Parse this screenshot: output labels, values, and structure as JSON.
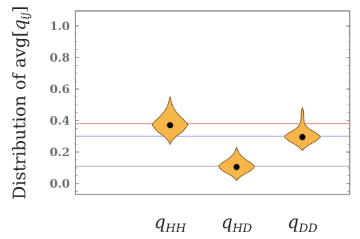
{
  "chart_data": {
    "type": "violin",
    "ylabel": "Distribution of avg[q_ij]",
    "ylabel_parts": {
      "prefix": "Distribution of avg",
      "var": "q",
      "sub": "ij"
    },
    "ylim": [
      -0.08,
      1.05
    ],
    "yticks": [
      "0.0",
      "0.2",
      "0.4",
      "0.6",
      "0.8",
      "1.0"
    ],
    "categories": [
      {
        "var": "q",
        "sub": "HH"
      },
      {
        "var": "q",
        "sub": "HD"
      },
      {
        "var": "q",
        "sub": "DD"
      }
    ],
    "series": [
      {
        "category": "q_HH",
        "median": 0.37,
        "range": [
          0.25,
          0.55
        ],
        "profile": [
          [
            0.25,
            0.0
          ],
          [
            0.27,
            0.1
          ],
          [
            0.3,
            0.35
          ],
          [
            0.33,
            0.7
          ],
          [
            0.36,
            0.92
          ],
          [
            0.375,
            1.0
          ],
          [
            0.39,
            0.9
          ],
          [
            0.42,
            0.62
          ],
          [
            0.45,
            0.38
          ],
          [
            0.48,
            0.2
          ],
          [
            0.51,
            0.1
          ],
          [
            0.53,
            0.05
          ],
          [
            0.55,
            0.0
          ]
        ]
      },
      {
        "category": "q_HD",
        "median": 0.105,
        "range": [
          0.02,
          0.23
        ],
        "profile": [
          [
            0.02,
            0.0
          ],
          [
            0.04,
            0.18
          ],
          [
            0.06,
            0.45
          ],
          [
            0.08,
            0.78
          ],
          [
            0.1,
            0.96
          ],
          [
            0.11,
            1.0
          ],
          [
            0.13,
            0.82
          ],
          [
            0.15,
            0.55
          ],
          [
            0.17,
            0.32
          ],
          [
            0.19,
            0.16
          ],
          [
            0.21,
            0.07
          ],
          [
            0.23,
            0.0
          ]
        ]
      },
      {
        "category": "q_DD",
        "median": 0.295,
        "range": [
          0.21,
          0.48
        ],
        "profile": [
          [
            0.21,
            0.0
          ],
          [
            0.23,
            0.18
          ],
          [
            0.25,
            0.45
          ],
          [
            0.27,
            0.75
          ],
          [
            0.29,
            0.96
          ],
          [
            0.3,
            1.0
          ],
          [
            0.32,
            0.78
          ],
          [
            0.34,
            0.48
          ],
          [
            0.36,
            0.25
          ],
          [
            0.38,
            0.13
          ],
          [
            0.4,
            0.09
          ],
          [
            0.43,
            0.07
          ],
          [
            0.46,
            0.06
          ],
          [
            0.48,
            0.0
          ]
        ]
      }
    ],
    "reference_lines": [
      {
        "y": 0.38,
        "color": "#e88a8a"
      },
      {
        "y": 0.3,
        "color": "#8f9ff0"
      },
      {
        "y": 0.11,
        "color": "#909090"
      }
    ],
    "colors": {
      "violin_fill": "#f7b64a",
      "violin_stroke": "#6b4a1a",
      "median_dot": "#000000",
      "frame": "#555555"
    }
  }
}
